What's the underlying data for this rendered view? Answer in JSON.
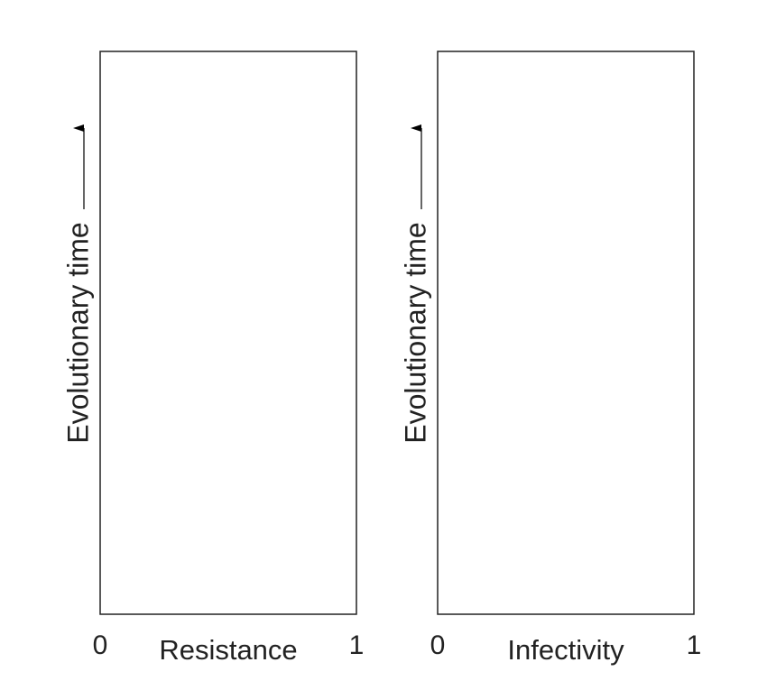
{
  "chart_data": [
    {
      "type": "line",
      "xlabel": "Resistance",
      "ylabel": "Evolutionary time",
      "xlim": [
        0,
        1
      ],
      "xticks": [
        0,
        1
      ]
    },
    {
      "type": "line",
      "xlabel": "Infectivity",
      "ylabel": "Evolutionary time",
      "xlim": [
        0,
        1
      ],
      "xticks": [
        0,
        1
      ]
    }
  ]
}
